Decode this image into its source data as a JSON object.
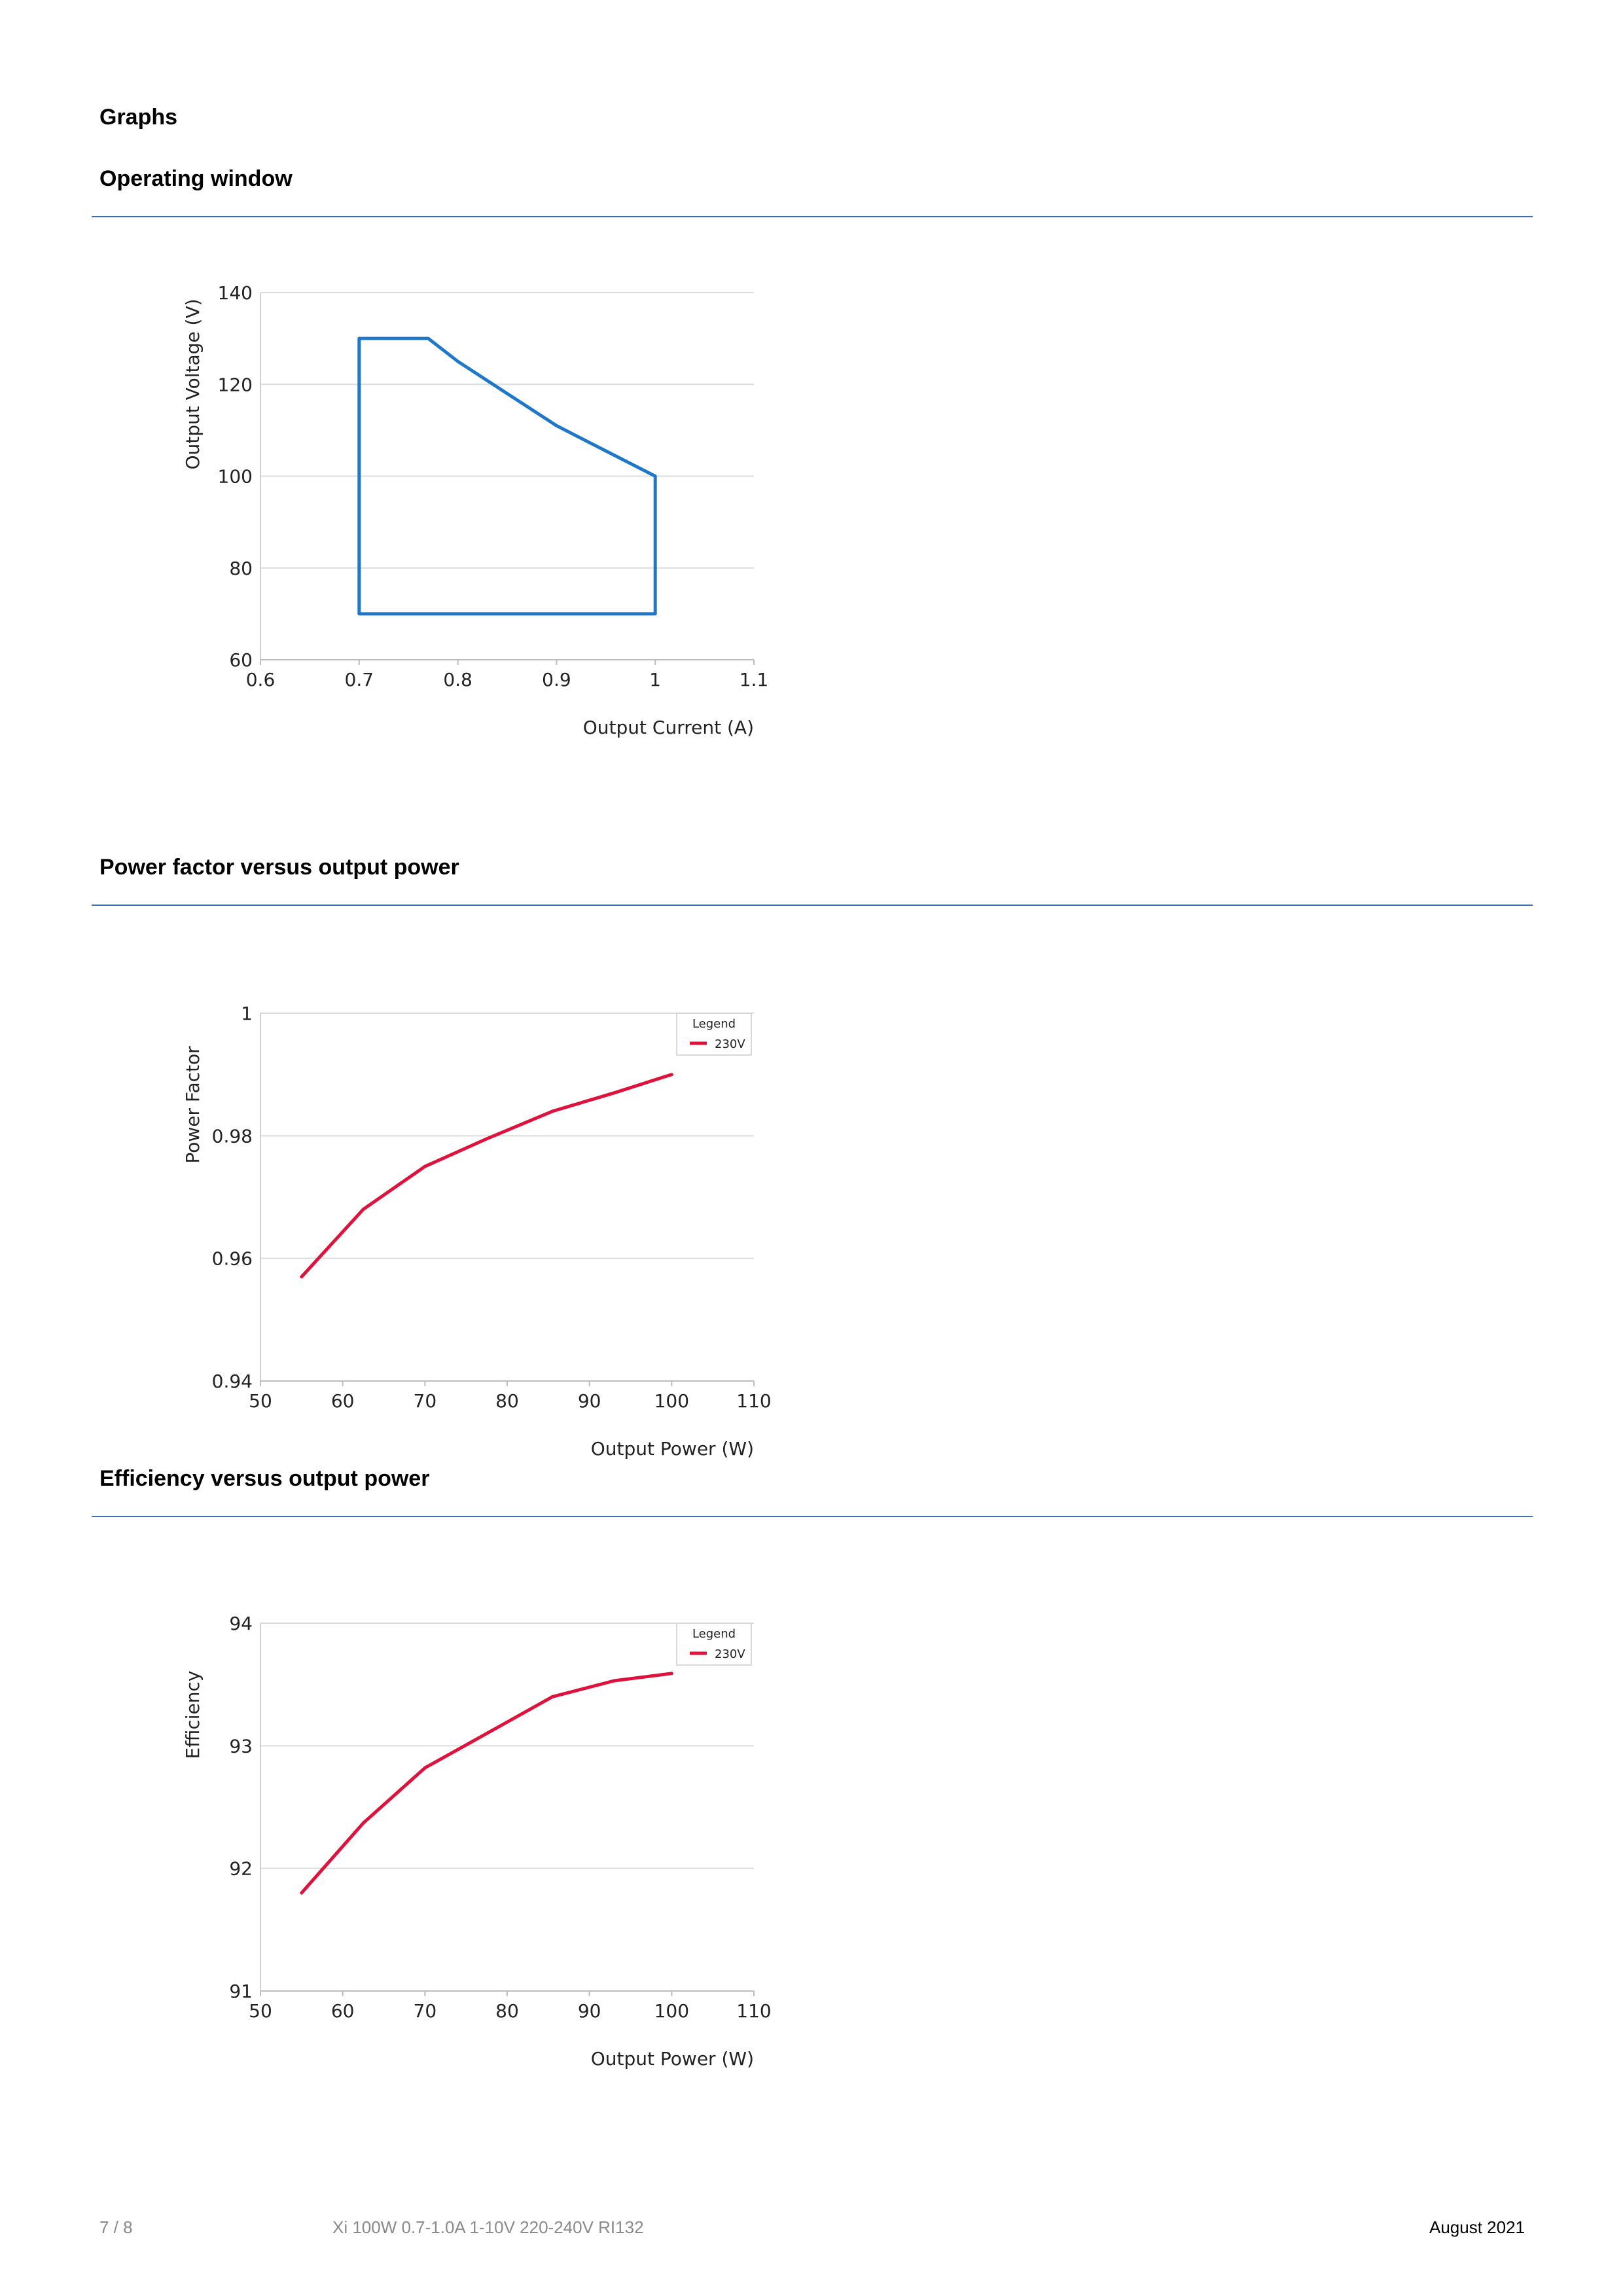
{
  "page": {
    "heading": "Graphs"
  },
  "sections": [
    {
      "title": "Operating window"
    },
    {
      "title": "Power factor versus output power"
    },
    {
      "title": "Efficiency versus output power"
    }
  ],
  "chart_data": [
    {
      "type": "line",
      "title": "",
      "xlabel": "Output Current (A)",
      "ylabel": "Output Voltage (V)",
      "xlim": [
        0.6,
        1.1
      ],
      "ylim": [
        60,
        140
      ],
      "xticks": [
        "0.6",
        "0.7",
        "0.8",
        "0.9",
        "1",
        "1.1"
      ],
      "yticks": [
        "60",
        "80",
        "100",
        "120",
        "140"
      ],
      "grid": true,
      "legend": null,
      "series": [
        {
          "color": "#1f77c9",
          "x": [
            0.7,
            0.7,
            0.77,
            0.8,
            0.9,
            1.0,
            1.0,
            0.7
          ],
          "y": [
            70,
            130,
            130,
            125,
            111,
            100,
            70,
            70
          ]
        }
      ]
    },
    {
      "type": "line",
      "title": "",
      "xlabel": "Output Power (W)",
      "ylabel": "Power Factor",
      "xlim": [
        50,
        110
      ],
      "ylim": [
        0.94,
        1
      ],
      "xticks": [
        "50",
        "60",
        "70",
        "80",
        "90",
        "100",
        "110"
      ],
      "yticks": [
        "0.94",
        "0.96",
        "0.98",
        "1"
      ],
      "grid": true,
      "legend": {
        "title": "Legend",
        "placement": "top-right"
      },
      "series": [
        {
          "name": "230V",
          "color": "#e0123c",
          "x": [
            55,
            62.5,
            70,
            77.5,
            85.5,
            93,
            100
          ],
          "y": [
            0.957,
            0.968,
            0.975,
            0.9795,
            0.984,
            0.987,
            0.99
          ]
        }
      ]
    },
    {
      "type": "line",
      "title": "",
      "xlabel": "Output Power (W)",
      "ylabel": "Efficiency",
      "xlim": [
        50,
        110
      ],
      "ylim": [
        91,
        94
      ],
      "xticks": [
        "50",
        "60",
        "70",
        "80",
        "90",
        "100",
        "110"
      ],
      "yticks": [
        "91",
        "92",
        "93",
        "94"
      ],
      "grid": true,
      "legend": {
        "title": "Legend",
        "placement": "top-right"
      },
      "series": [
        {
          "name": "230V",
          "color": "#e0123c",
          "x": [
            55,
            62.5,
            70,
            77.5,
            85.5,
            93,
            100
          ],
          "y": [
            91.8,
            92.37,
            92.82,
            93.1,
            93.4,
            93.53,
            93.59
          ]
        }
      ]
    }
  ],
  "footer": {
    "page_number": "7 / 8",
    "product": "Xi 100W 0.7-1.0A 1-10V 220-240V RI132",
    "date": "August 2021"
  }
}
